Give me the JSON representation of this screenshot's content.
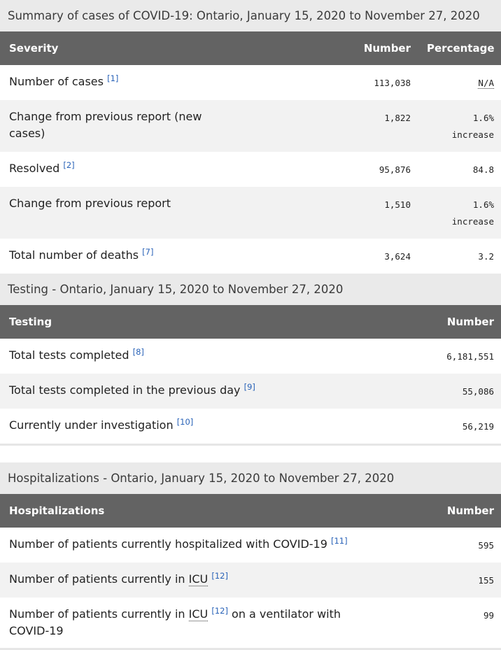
{
  "sections": [
    {
      "caption": "Summary of cases of COVID-19: Ontario, January 15, 2020 to November 27, 2020",
      "headers": [
        "Severity",
        "Number",
        "Percentage"
      ],
      "rows": [
        {
          "label": [
            "Number of cases ",
            {
              "ref": "[1]"
            }
          ],
          "number": "113,038",
          "percentage": {
            "abbr": "N/A"
          }
        },
        {
          "label": [
            "Change from previous report (new cases)"
          ],
          "number": "1,822",
          "percentage": "1.6% increase"
        },
        {
          "label": [
            "Resolved ",
            {
              "ref": "[2]"
            }
          ],
          "number": "95,876",
          "percentage": "84.8"
        },
        {
          "label": [
            "Change from previous report"
          ],
          "number": "1,510",
          "percentage": "1.6% increase"
        },
        {
          "label": [
            "Total number of deaths ",
            {
              "ref": "[7]"
            }
          ],
          "number": "3,624",
          "percentage": "3.2"
        }
      ]
    },
    {
      "caption": "Testing - Ontario, January 15, 2020 to November 27, 2020",
      "headers": [
        "Testing",
        "Number"
      ],
      "rows": [
        {
          "label": [
            "Total tests completed ",
            {
              "ref": "[8]"
            }
          ],
          "number": "6,181,551"
        },
        {
          "label": [
            "Total tests completed in the previous day ",
            {
              "ref": "[9]"
            }
          ],
          "number": "55,086"
        },
        {
          "label": [
            "Currently under investigation ",
            {
              "ref": "[10]"
            }
          ],
          "number": "56,219"
        }
      ]
    },
    {
      "caption": "Hospitalizations - Ontario, January 15, 2020 to November 27, 2020",
      "headers": [
        "Hospitalizations",
        "Number"
      ],
      "rows": [
        {
          "label": [
            "Number of patients currently hospitalized with COVID-19 ",
            {
              "ref": "[11]"
            }
          ],
          "number": "595"
        },
        {
          "label": [
            "Number of patients currently in ",
            {
              "abbr": "ICU"
            },
            " ",
            {
              "ref": "[12]"
            }
          ],
          "number": "155"
        },
        {
          "label": [
            "Number of patients currently in ",
            {
              "abbr": "ICU"
            },
            " ",
            {
              "ref": "[12]"
            },
            " on a ventilator with COVID-19"
          ],
          "number": "99"
        }
      ]
    }
  ]
}
